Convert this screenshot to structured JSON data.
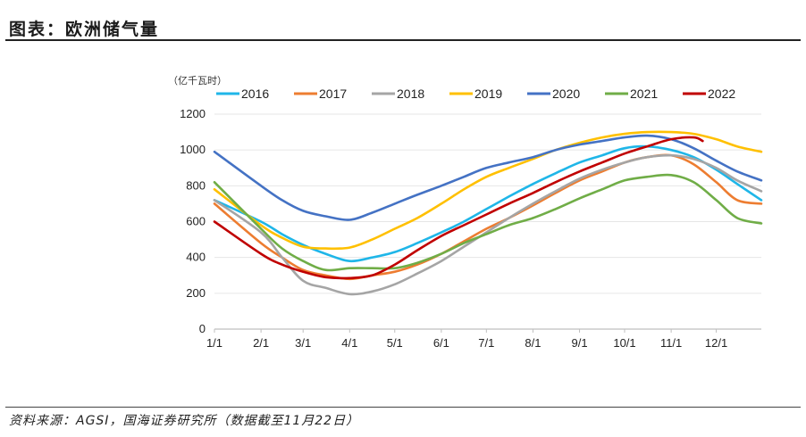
{
  "header": {
    "title": "图表：欧洲储气量"
  },
  "footer": {
    "source": "资料来源：AGSI，国海证券研究所（数据截至11月22日）"
  },
  "colors": {
    "axis": "#bfbfbf",
    "grid": "#e6e6e6"
  },
  "chart_data": {
    "type": "line",
    "title": "",
    "unit_label": "（亿千瓦时）",
    "xlabel": "",
    "ylabel": "",
    "ylim": [
      0,
      1200
    ],
    "yticks": [
      0,
      200,
      400,
      600,
      800,
      1000,
      1200
    ],
    "xticks": [
      "1/1",
      "2/1",
      "3/1",
      "4/1",
      "5/1",
      "6/1",
      "7/1",
      "8/1",
      "9/1",
      "10/1",
      "11/1",
      "12/1"
    ],
    "grid": true,
    "legend_position": "top",
    "x_unit": "day of year",
    "series": [
      {
        "name": "2016",
        "color": "#1fb6e8",
        "x": [
          1,
          32,
          46,
          60,
          75,
          91,
          106,
          121,
          136,
          152,
          167,
          182,
          197,
          213,
          228,
          244,
          259,
          274,
          289,
          305,
          320,
          335,
          349,
          365
        ],
        "values": [
          720,
          600,
          530,
          470,
          420,
          380,
          400,
          430,
          480,
          540,
          600,
          670,
          740,
          810,
          870,
          930,
          970,
          1010,
          1020,
          1000,
          960,
          890,
          810,
          720
        ]
      },
      {
        "name": "2017",
        "color": "#ed7d31",
        "x": [
          1,
          32,
          46,
          60,
          75,
          91,
          106,
          121,
          136,
          152,
          167,
          182,
          197,
          213,
          228,
          244,
          259,
          274,
          289,
          305,
          320,
          335,
          349,
          365
        ],
        "values": [
          700,
          480,
          400,
          330,
          300,
          280,
          300,
          320,
          360,
          420,
          490,
          560,
          620,
          690,
          760,
          830,
          880,
          930,
          960,
          970,
          920,
          820,
          720,
          700
        ]
      },
      {
        "name": "2018",
        "color": "#a5a5a5",
        "x": [
          1,
          32,
          46,
          60,
          75,
          91,
          106,
          121,
          136,
          152,
          167,
          182,
          197,
          213,
          228,
          244,
          259,
          274,
          289,
          305,
          320,
          335,
          349,
          365
        ],
        "values": [
          720,
          540,
          400,
          270,
          230,
          195,
          210,
          250,
          310,
          380,
          460,
          540,
          620,
          700,
          770,
          840,
          890,
          930,
          960,
          970,
          950,
          900,
          830,
          770
        ]
      },
      {
        "name": "2019",
        "color": "#ffc000",
        "x": [
          1,
          32,
          46,
          60,
          75,
          91,
          106,
          121,
          136,
          152,
          167,
          182,
          197,
          213,
          228,
          244,
          259,
          274,
          289,
          305,
          320,
          335,
          349,
          365
        ],
        "values": [
          780,
          580,
          510,
          460,
          450,
          455,
          500,
          560,
          620,
          700,
          780,
          850,
          900,
          950,
          1000,
          1040,
          1070,
          1090,
          1100,
          1100,
          1090,
          1060,
          1020,
          990
        ]
      },
      {
        "name": "2020",
        "color": "#4472c4",
        "x": [
          1,
          32,
          46,
          60,
          75,
          91,
          106,
          121,
          136,
          152,
          167,
          182,
          197,
          213,
          228,
          244,
          259,
          274,
          289,
          305,
          320,
          335,
          349,
          365
        ],
        "values": [
          990,
          800,
          720,
          660,
          630,
          610,
          650,
          700,
          750,
          800,
          850,
          900,
          930,
          960,
          1000,
          1030,
          1050,
          1070,
          1080,
          1060,
          1010,
          940,
          880,
          830
        ]
      },
      {
        "name": "2021",
        "color": "#70ad47",
        "x": [
          1,
          32,
          46,
          60,
          75,
          91,
          106,
          121,
          136,
          152,
          167,
          182,
          197,
          213,
          228,
          244,
          259,
          274,
          289,
          305,
          320,
          335,
          349,
          365
        ],
        "values": [
          820,
          560,
          450,
          380,
          330,
          340,
          340,
          340,
          370,
          420,
          480,
          530,
          580,
          620,
          670,
          730,
          780,
          830,
          850,
          860,
          820,
          720,
          620,
          590
        ]
      },
      {
        "name": "2022",
        "color": "#c00000",
        "x": [
          1,
          32,
          46,
          60,
          75,
          91,
          106,
          121,
          136,
          152,
          167,
          182,
          197,
          213,
          228,
          244,
          259,
          274,
          289,
          305,
          320,
          326
        ],
        "values": [
          600,
          420,
          360,
          320,
          290,
          285,
          300,
          360,
          440,
          520,
          580,
          640,
          700,
          760,
          820,
          880,
          930,
          980,
          1020,
          1060,
          1070,
          1050
        ]
      }
    ]
  }
}
